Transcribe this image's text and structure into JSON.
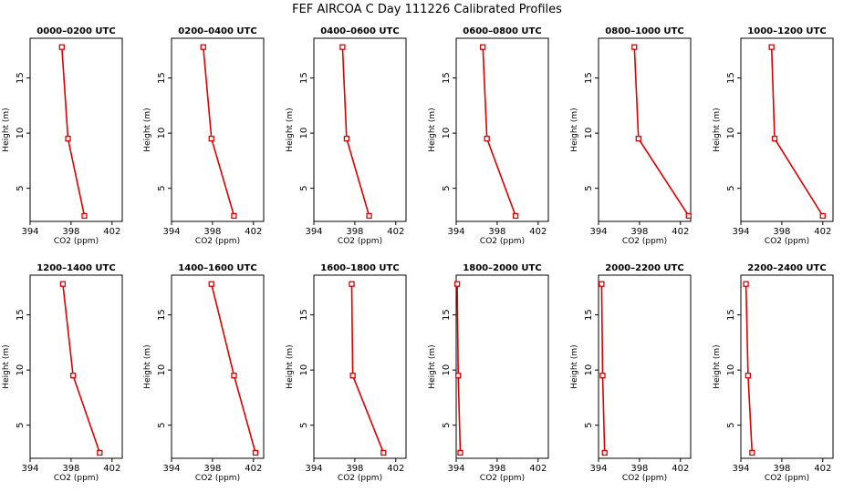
{
  "title": "FEF AIRCOA C  Day 111226  Calibrated Profiles",
  "colors": {
    "series": "#dd0000",
    "axis": "#000000",
    "background": "#ffffff"
  },
  "chart_data": [
    {
      "type": "line",
      "title": "0000–0200 UTC",
      "xlabel": "CO2 (ppm)",
      "ylabel": "Height (m)",
      "xlim": [
        394,
        403
      ],
      "ylim": [
        2,
        18.6
      ],
      "xticks": [
        "394",
        "398",
        "402"
      ],
      "yticks": [
        "5",
        "10",
        "15"
      ],
      "grid": false,
      "points": [
        {
          "x": 397.1,
          "y": 17.8
        },
        {
          "x": 397.7,
          "y": 9.5
        },
        {
          "x": 399.3,
          "y": 2.5
        }
      ]
    },
    {
      "type": "line",
      "title": "0200–0400 UTC",
      "xlabel": "CO2 (ppm)",
      "ylabel": "Height (m)",
      "xlim": [
        394,
        403
      ],
      "ylim": [
        2,
        18.6
      ],
      "xticks": [
        "394",
        "398",
        "402"
      ],
      "yticks": [
        "5",
        "10",
        "15"
      ],
      "grid": false,
      "points": [
        {
          "x": 397.1,
          "y": 17.8
        },
        {
          "x": 397.9,
          "y": 9.5
        },
        {
          "x": 400.1,
          "y": 2.5
        }
      ]
    },
    {
      "type": "line",
      "title": "0400–0600 UTC",
      "xlabel": "CO2 (ppm)",
      "ylabel": "Height (m)",
      "xlim": [
        394,
        403
      ],
      "ylim": [
        2,
        18.6
      ],
      "xticks": [
        "394",
        "398",
        "402"
      ],
      "yticks": [
        "5",
        "10",
        "15"
      ],
      "grid": false,
      "points": [
        {
          "x": 396.8,
          "y": 17.8
        },
        {
          "x": 397.2,
          "y": 9.5
        },
        {
          "x": 399.4,
          "y": 2.5
        }
      ]
    },
    {
      "type": "line",
      "title": "0600–0800 UTC",
      "xlabel": "CO2 (ppm)",
      "ylabel": "Height (m)",
      "xlim": [
        394,
        403
      ],
      "ylim": [
        2,
        18.6
      ],
      "xticks": [
        "394",
        "398",
        "402"
      ],
      "yticks": [
        "5",
        "10",
        "15"
      ],
      "grid": false,
      "points": [
        {
          "x": 396.6,
          "y": 17.8
        },
        {
          "x": 397.0,
          "y": 9.5
        },
        {
          "x": 399.8,
          "y": 2.5
        }
      ]
    },
    {
      "type": "line",
      "title": "0800–1000 UTC",
      "xlabel": "CO2 (ppm)",
      "ylabel": "Height (m)",
      "xlim": [
        394,
        403
      ],
      "ylim": [
        2,
        18.6
      ],
      "xticks": [
        "394",
        "398",
        "402"
      ],
      "yticks": [
        "5",
        "10",
        "15"
      ],
      "grid": false,
      "points": [
        {
          "x": 397.5,
          "y": 17.8
        },
        {
          "x": 397.9,
          "y": 9.5
        },
        {
          "x": 402.8,
          "y": 2.5
        }
      ]
    },
    {
      "type": "line",
      "title": "1000–1200 UTC",
      "xlabel": "CO2 (ppm)",
      "ylabel": "Height (m)",
      "xlim": [
        394,
        403
      ],
      "ylim": [
        2,
        18.6
      ],
      "xticks": [
        "394",
        "398",
        "402"
      ],
      "yticks": [
        "5",
        "10",
        "15"
      ],
      "grid": false,
      "points": [
        {
          "x": 397.0,
          "y": 17.8
        },
        {
          "x": 397.3,
          "y": 9.5
        },
        {
          "x": 402.0,
          "y": 2.5
        }
      ]
    },
    {
      "type": "line",
      "title": "1200–1400 UTC",
      "xlabel": "CO2 (ppm)",
      "ylabel": "Height (m)",
      "xlim": [
        394,
        403
      ],
      "ylim": [
        2,
        18.6
      ],
      "xticks": [
        "394",
        "398",
        "402"
      ],
      "yticks": [
        "5",
        "10",
        "15"
      ],
      "grid": false,
      "points": [
        {
          "x": 397.2,
          "y": 17.8
        },
        {
          "x": 398.2,
          "y": 9.5
        },
        {
          "x": 400.8,
          "y": 2.5
        }
      ]
    },
    {
      "type": "line",
      "title": "1400–1600 UTC",
      "xlabel": "CO2 (ppm)",
      "ylabel": "Height (m)",
      "xlim": [
        394,
        403
      ],
      "ylim": [
        2,
        18.6
      ],
      "xticks": [
        "394",
        "398",
        "402"
      ],
      "yticks": [
        "5",
        "10",
        "15"
      ],
      "grid": false,
      "points": [
        {
          "x": 397.9,
          "y": 17.8
        },
        {
          "x": 400.1,
          "y": 9.5
        },
        {
          "x": 402.2,
          "y": 2.5
        }
      ]
    },
    {
      "type": "line",
      "title": "1600–1800 UTC",
      "xlabel": "CO2 (ppm)",
      "ylabel": "Height (m)",
      "xlim": [
        394,
        403
      ],
      "ylim": [
        2,
        18.6
      ],
      "xticks": [
        "394",
        "398",
        "402"
      ],
      "yticks": [
        "5",
        "10",
        "15"
      ],
      "grid": false,
      "points": [
        {
          "x": 397.7,
          "y": 17.8
        },
        {
          "x": 397.8,
          "y": 9.5
        },
        {
          "x": 400.8,
          "y": 2.5
        }
      ]
    },
    {
      "type": "line",
      "title": "1800–2000 UTC",
      "xlabel": "CO2 (ppm)",
      "ylabel": "Height (m)",
      "xlim": [
        394,
        403
      ],
      "ylim": [
        2,
        18.6
      ],
      "xticks": [
        "394",
        "398",
        "402"
      ],
      "yticks": [
        "5",
        "10",
        "15"
      ],
      "grid": false,
      "points": [
        {
          "x": 394.1,
          "y": 17.8
        },
        {
          "x": 394.2,
          "y": 9.5
        },
        {
          "x": 394.4,
          "y": 2.5
        }
      ]
    },
    {
      "type": "line",
      "title": "2000–2200 UTC",
      "xlabel": "CO2 (ppm)",
      "ylabel": "Height (m)",
      "xlim": [
        394,
        403
      ],
      "ylim": [
        2,
        18.6
      ],
      "xticks": [
        "394",
        "398",
        "402"
      ],
      "yticks": [
        "5",
        "10",
        "15"
      ],
      "grid": false,
      "points": [
        {
          "x": 394.3,
          "y": 17.8
        },
        {
          "x": 394.4,
          "y": 9.5
        },
        {
          "x": 394.6,
          "y": 2.5
        }
      ]
    },
    {
      "type": "line",
      "title": "2200–2400 UTC",
      "xlabel": "CO2 (ppm)",
      "ylabel": "Height (m)",
      "xlim": [
        394,
        403
      ],
      "ylim": [
        2,
        18.6
      ],
      "xticks": [
        "394",
        "398",
        "402"
      ],
      "yticks": [
        "5",
        "10",
        "15"
      ],
      "grid": false,
      "points": [
        {
          "x": 394.5,
          "y": 17.8
        },
        {
          "x": 394.7,
          "y": 9.5
        },
        {
          "x": 395.1,
          "y": 2.5
        }
      ]
    }
  ]
}
